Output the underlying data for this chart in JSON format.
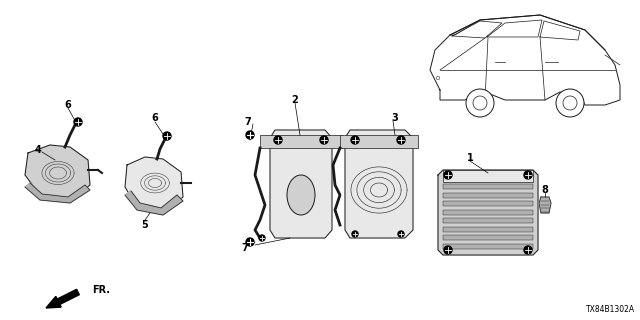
{
  "background_color": "#ffffff",
  "diagram_code": "TX84B1302A",
  "fr_arrow_text": "FR.",
  "label_fontsize": 7,
  "code_fontsize": 5.5,
  "line_color": "#1a1a1a",
  "fill_light": "#e8e8e8",
  "fill_mid": "#d0d0d0",
  "fill_dark": "#b0b0b0"
}
